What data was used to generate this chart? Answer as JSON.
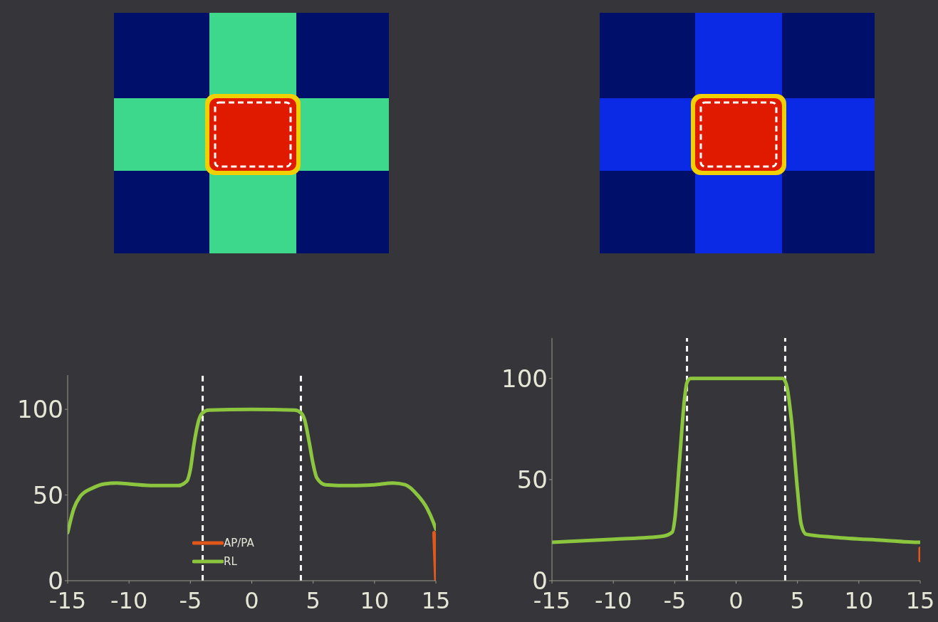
{
  "chart_data": [
    {
      "type": "line",
      "xlim": [
        -15,
        15
      ],
      "xticks": [
        -15,
        -10,
        -5,
        0,
        5,
        10,
        15
      ],
      "ylim": [
        0,
        120
      ],
      "yticks": [
        0,
        50,
        100
      ],
      "grid": false,
      "legend": "bottom",
      "marker": "none",
      "line_style": "solid",
      "ref_lines": [
        {
          "axis": "x",
          "value": -4,
          "color": "#ffffff",
          "line_style": "dashed"
        },
        {
          "axis": "x",
          "value": 4,
          "color": "#ffffff",
          "line_style": "dashed"
        }
      ],
      "series": [
        {
          "name": "AP/PA",
          "color": "#e0581c",
          "x": [
            14.85,
            15
          ],
          "values": [
            28,
            0
          ]
        },
        {
          "name": "RL",
          "color": "#8cc63f",
          "x": [
            -15,
            -14.5,
            -14,
            -13,
            -12,
            -11,
            -10,
            -8,
            -6,
            -5.3,
            -5,
            -4.7,
            -4.3,
            -4,
            -3.5,
            0,
            3.5,
            4,
            4.3,
            4.7,
            5,
            5.3,
            6,
            8,
            10,
            11.5,
            12.5,
            13.5,
            14.3,
            14.8,
            15
          ],
          "values": [
            28,
            42,
            49,
            54,
            56.5,
            57,
            56.5,
            55.5,
            55.5,
            58,
            65,
            80,
            94,
            98,
            99.5,
            100,
            99.5,
            98,
            94,
            80,
            68,
            60,
            56,
            55.5,
            56,
            57,
            56,
            50,
            42,
            34,
            30
          ]
        }
      ]
    },
    {
      "type": "line",
      "xlim": [
        -15,
        15
      ],
      "xticks": [
        -15,
        -10,
        -5,
        0,
        5,
        10,
        15
      ],
      "ylim": [
        0,
        120
      ],
      "yticks": [
        0,
        50,
        100
      ],
      "grid": false,
      "marker": "none",
      "line_style": "solid",
      "ref_lines": [
        {
          "axis": "x",
          "value": -4,
          "color": "#ffffff",
          "line_style": "dashed"
        },
        {
          "axis": "x",
          "value": 4,
          "color": "#ffffff",
          "line_style": "dashed"
        }
      ],
      "series": [
        {
          "color": "#e0581c",
          "x": [
            15,
            15
          ],
          "values": [
            16,
            10
          ]
        },
        {
          "color": "#8cc63f",
          "x": [
            -15,
            -10,
            -6,
            -5.2,
            -5,
            -4.6,
            -4.2,
            -4,
            -3.7,
            0,
            3.8,
            4.1,
            4.5,
            5,
            5.3,
            5.7,
            8,
            12,
            14.8,
            15
          ],
          "values": [
            19,
            20.5,
            22,
            24,
            30,
            60,
            90,
            98,
            100,
            100,
            100,
            97,
            80,
            45,
            28,
            23,
            21.5,
            20,
            19,
            19
          ]
        }
      ]
    }
  ]
}
